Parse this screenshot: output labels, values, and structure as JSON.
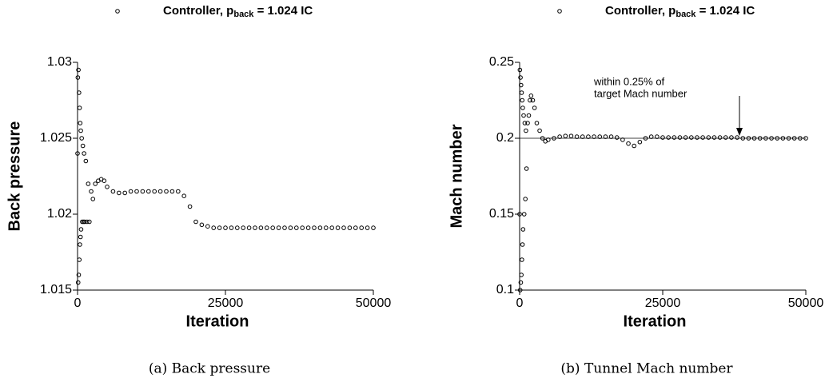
{
  "chart_data": [
    {
      "type": "scatter",
      "caption": "(a) Back pressure",
      "x_label": "Iteration",
      "y_label": "Back pressure",
      "xlim": [
        0,
        50000
      ],
      "xticks": [
        0,
        25000,
        50000
      ],
      "ylim": [
        1.015,
        1.03
      ],
      "yticks": [
        1.015,
        1.02,
        1.025,
        1.03
      ],
      "x": [
        0,
        50,
        100,
        150,
        200,
        250,
        300,
        350,
        400,
        450,
        500,
        550,
        600,
        700,
        800,
        900,
        1000,
        1100,
        1200,
        1400,
        1600,
        1800,
        2000,
        2300,
        2600,
        3000,
        3500,
        4000,
        4500,
        5000,
        6000,
        7000,
        8000,
        9000,
        10000,
        11000,
        12000,
        13000,
        14000,
        15000,
        16000,
        17000,
        18000,
        19000,
        20000,
        21000,
        22000,
        23000,
        24000,
        25000,
        26000,
        27000,
        28000,
        29000,
        30000,
        31000,
        32000,
        33000,
        34000,
        35000,
        36000,
        37000,
        38000,
        39000,
        40000,
        41000,
        42000,
        43000,
        44000,
        45000,
        46000,
        47000,
        48000,
        49000,
        50000
      ],
      "series": [
        {
          "name": [
            "Controller, p",
            "back",
            " = 1.024 IC"
          ],
          "color": "#000000",
          "values": [
            1.024,
            1.029,
            1.0155,
            1.0295,
            1.016,
            1.028,
            1.017,
            1.027,
            1.018,
            1.026,
            1.0185,
            1.0255,
            1.019,
            1.025,
            1.0195,
            1.0245,
            1.0195,
            1.024,
            1.0195,
            1.0235,
            1.0195,
            1.022,
            1.0195,
            1.0215,
            1.021,
            1.022,
            1.0222,
            1.0223,
            1.0222,
            1.0218,
            1.0215,
            1.0214,
            1.0214,
            1.0215,
            1.0215,
            1.0215,
            1.0215,
            1.0215,
            1.0215,
            1.0215,
            1.0215,
            1.0215,
            1.0212,
            1.0205,
            1.0195,
            1.0193,
            1.0192,
            1.0191,
            1.0191,
            1.0191,
            1.0191,
            1.0191,
            1.0191,
            1.0191,
            1.0191,
            1.0191,
            1.0191,
            1.0191,
            1.0191,
            1.0191,
            1.0191,
            1.0191,
            1.0191,
            1.0191,
            1.0191,
            1.0191,
            1.0191,
            1.0191,
            1.0191,
            1.0191,
            1.0191,
            1.0191,
            1.0191,
            1.0191,
            1.0191
          ]
        }
      ]
    },
    {
      "type": "scatter",
      "caption": "(b) Tunnel Mach number",
      "x_label": "Iteration",
      "y_label": "Mach number",
      "xlim": [
        0,
        50000
      ],
      "xticks": [
        0,
        25000,
        50000
      ],
      "ylim": [
        0.1,
        0.25
      ],
      "yticks": [
        0.1,
        0.15,
        0.2,
        0.25
      ],
      "reference_line": 0.2,
      "annotation": [
        "within 0.25% of",
        "target Mach number"
      ],
      "x": [
        0,
        50,
        100,
        150,
        200,
        250,
        300,
        350,
        400,
        450,
        500,
        550,
        600,
        700,
        800,
        900,
        1000,
        1100,
        1200,
        1400,
        1600,
        1800,
        2000,
        2300,
        2600,
        3000,
        3500,
        4000,
        4500,
        5000,
        6000,
        7000,
        8000,
        9000,
        10000,
        11000,
        12000,
        13000,
        14000,
        15000,
        16000,
        17000,
        18000,
        19000,
        20000,
        21000,
        22000,
        23000,
        24000,
        25000,
        26000,
        27000,
        28000,
        29000,
        30000,
        31000,
        32000,
        33000,
        34000,
        35000,
        36000,
        37000,
        38000,
        39000,
        40000,
        41000,
        42000,
        43000,
        44000,
        45000,
        46000,
        47000,
        48000,
        49000,
        50000
      ],
      "series": [
        {
          "name": [
            "Controller, p",
            "back",
            " = 1.024 IC"
          ],
          "color": "#000000",
          "values": [
            0.15,
            0.245,
            0.1,
            0.24,
            0.105,
            0.235,
            0.11,
            0.23,
            0.12,
            0.225,
            0.13,
            0.22,
            0.14,
            0.215,
            0.15,
            0.21,
            0.16,
            0.205,
            0.18,
            0.21,
            0.215,
            0.225,
            0.228,
            0.225,
            0.22,
            0.21,
            0.205,
            0.2,
            0.198,
            0.199,
            0.2,
            0.201,
            0.2015,
            0.2015,
            0.201,
            0.201,
            0.201,
            0.201,
            0.201,
            0.201,
            0.201,
            0.2005,
            0.199,
            0.1965,
            0.195,
            0.1975,
            0.2,
            0.201,
            0.201,
            0.2005,
            0.2005,
            0.2005,
            0.2005,
            0.2005,
            0.2005,
            0.2005,
            0.2005,
            0.2005,
            0.2005,
            0.2005,
            0.2005,
            0.2005,
            0.2005,
            0.2,
            0.2,
            0.2,
            0.2,
            0.2,
            0.2,
            0.2,
            0.2,
            0.2,
            0.2,
            0.2,
            0.2
          ]
        }
      ]
    }
  ]
}
